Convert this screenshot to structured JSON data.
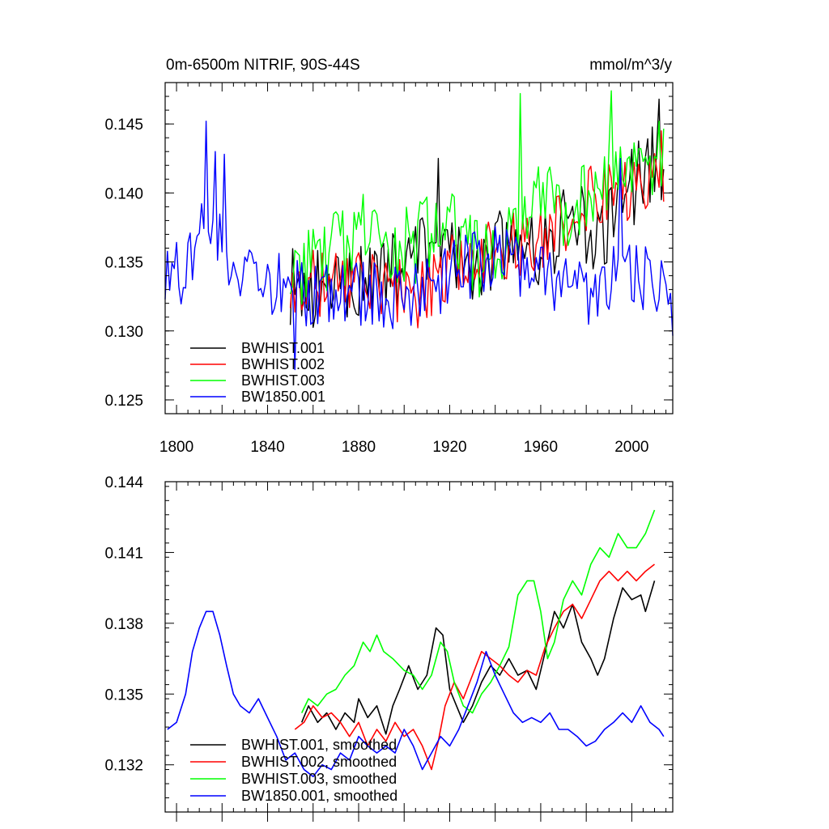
{
  "figure": {
    "colors": {
      "BWHIST.001": "#000000",
      "BWHIST.002": "#ff0000",
      "BWHIST.003": "#00ff00",
      "BW1850.001": "#0000ff"
    }
  },
  "chart_data": [
    {
      "type": "line",
      "title_left": "0m-6500m NITRIF, 90S-44S",
      "title_right": "mmol/m^3/y",
      "xlim": [
        1795,
        2018
      ],
      "ylim": [
        0.124,
        0.148
      ],
      "yticks": [
        "0.125",
        "0.130",
        "0.135",
        "0.140",
        "0.145"
      ],
      "xticks": [
        "1800",
        "1840",
        "1880",
        "1920",
        "1960",
        "2000"
      ],
      "legend": {
        "position": "bottom-left",
        "entries": [
          "BWHIST.001",
          "BWHIST.002",
          "BWHIST.003",
          "BW1850.001"
        ]
      },
      "series": [
        {
          "name": "BWHIST.001",
          "color": "#000000",
          "x_start": 1850,
          "x_end": 2014,
          "anchors": [
            [
              1850,
              0.133
            ],
            [
              1880,
              0.1335
            ],
            [
              1900,
              0.1345
            ],
            [
              1915,
              0.137
            ],
            [
              1925,
              0.1345
            ],
            [
              1945,
              0.1365
            ],
            [
              1960,
              0.136
            ],
            [
              1975,
              0.1385
            ],
            [
              1985,
              0.137
            ],
            [
              2000,
              0.1405
            ],
            [
              2014,
              0.1425
            ]
          ],
          "noise": 0.003,
          "spikes": [
            [
              2012,
              0.1468
            ],
            [
              1915,
              0.1425
            ]
          ]
        },
        {
          "name": "BWHIST.002",
          "color": "#ff0000",
          "x_start": 1850,
          "x_end": 2014,
          "anchors": [
            [
              1850,
              0.1335
            ],
            [
              1880,
              0.1335
            ],
            [
              1905,
              0.1325
            ],
            [
              1925,
              0.1355
            ],
            [
              1945,
              0.136
            ],
            [
              1965,
              0.137
            ],
            [
              1985,
              0.14
            ],
            [
              2000,
              0.14
            ],
            [
              2014,
              0.1415
            ]
          ],
          "noise": 0.0025,
          "spikes": [
            [
              2013,
              0.1445
            ]
          ]
        },
        {
          "name": "BWHIST.003",
          "color": "#00ff00",
          "x_start": 1850,
          "x_end": 2014,
          "anchors": [
            [
              1850,
              0.1345
            ],
            [
              1865,
              0.135
            ],
            [
              1880,
              0.137
            ],
            [
              1900,
              0.136
            ],
            [
              1920,
              0.1375
            ],
            [
              1935,
              0.135
            ],
            [
              1955,
              0.139
            ],
            [
              1975,
              0.139
            ],
            [
              1995,
              0.141
            ],
            [
              2014,
              0.143
            ]
          ],
          "noise": 0.003,
          "spikes": [
            [
              1951,
              0.1472
            ],
            [
              1991,
              0.1474
            ],
            [
              2012,
              0.1452
            ]
          ]
        },
        {
          "name": "BW1850.001",
          "color": "#0000ff",
          "x_start": 1795,
          "x_end": 2018,
          "anchors": [
            [
              1795,
              0.1335
            ],
            [
              1805,
              0.1345
            ],
            [
              1815,
              0.1385
            ],
            [
              1825,
              0.1345
            ],
            [
              1840,
              0.1335
            ],
            [
              1860,
              0.1325
            ],
            [
              1880,
              0.1325
            ],
            [
              1900,
              0.1325
            ],
            [
              1920,
              0.134
            ],
            [
              1940,
              0.1355
            ],
            [
              1960,
              0.1345
            ],
            [
              1975,
              0.1325
            ],
            [
              1990,
              0.1335
            ],
            [
              2000,
              0.1345
            ],
            [
              2010,
              0.1335
            ],
            [
              2018,
              0.132
            ]
          ],
          "noise": 0.0025,
          "spikes": [
            [
              1813,
              0.1452
            ],
            [
              1817,
              0.143
            ],
            [
              1821,
              0.1428
            ],
            [
              1852,
              0.1272
            ],
            [
              1995,
              0.1425
            ]
          ]
        }
      ]
    },
    {
      "type": "line",
      "xlim": [
        1795,
        2018
      ],
      "ylim": [
        0.13,
        0.144
      ],
      "yticks": [
        "0.132",
        "0.135",
        "0.138",
        "0.141",
        "0.144"
      ],
      "legend": {
        "position": "bottom-left",
        "entries": [
          "BWHIST.001, smoothed",
          "BWHIST.002, smoothed",
          "BWHIST.003, smoothed",
          "BW1850.001, smoothed"
        ]
      },
      "series": [
        {
          "name": "BWHIST.001, smoothed",
          "color": "#000000",
          "points": [
            [
              1855,
              0.1338
            ],
            [
              1858,
              0.1345
            ],
            [
              1862,
              0.1338
            ],
            [
              1866,
              0.1342
            ],
            [
              1870,
              0.1335
            ],
            [
              1874,
              0.1342
            ],
            [
              1878,
              0.1338
            ],
            [
              1880,
              0.1348
            ],
            [
              1884,
              0.134
            ],
            [
              1888,
              0.1345
            ],
            [
              1892,
              0.1333
            ],
            [
              1895,
              0.1345
            ],
            [
              1898,
              0.1352
            ],
            [
              1902,
              0.1362
            ],
            [
              1906,
              0.1352
            ],
            [
              1910,
              0.1358
            ],
            [
              1914,
              0.1378
            ],
            [
              1917,
              0.1375
            ],
            [
              1920,
              0.1352
            ],
            [
              1923,
              0.1345
            ],
            [
              1926,
              0.1338
            ],
            [
              1930,
              0.1345
            ],
            [
              1934,
              0.1355
            ],
            [
              1938,
              0.1362
            ],
            [
              1942,
              0.1358
            ],
            [
              1946,
              0.1365
            ],
            [
              1950,
              0.1358
            ],
            [
              1954,
              0.136
            ],
            [
              1958,
              0.1352
            ],
            [
              1962,
              0.1368
            ],
            [
              1966,
              0.1385
            ],
            [
              1970,
              0.1378
            ],
            [
              1974,
              0.1388
            ],
            [
              1978,
              0.1372
            ],
            [
              1982,
              0.1365
            ],
            [
              1985,
              0.1358
            ],
            [
              1988,
              0.1365
            ],
            [
              1992,
              0.1382
            ],
            [
              1996,
              0.1395
            ],
            [
              2000,
              0.139
            ],
            [
              2004,
              0.1392
            ],
            [
              2006,
              0.1385
            ],
            [
              2010,
              0.1398
            ]
          ]
        },
        {
          "name": "BWHIST.002, smoothed",
          "color": "#ff0000",
          "points": [
            [
              1852,
              0.1335
            ],
            [
              1856,
              0.1338
            ],
            [
              1860,
              0.1345
            ],
            [
              1864,
              0.134
            ],
            [
              1868,
              0.1342
            ],
            [
              1872,
              0.1338
            ],
            [
              1876,
              0.1332
            ],
            [
              1880,
              0.1338
            ],
            [
              1884,
              0.1328
            ],
            [
              1888,
              0.1335
            ],
            [
              1892,
              0.133
            ],
            [
              1896,
              0.1338
            ],
            [
              1900,
              0.1332
            ],
            [
              1904,
              0.1335
            ],
            [
              1908,
              0.1328
            ],
            [
              1912,
              0.1318
            ],
            [
              1915,
              0.133
            ],
            [
              1918,
              0.1345
            ],
            [
              1922,
              0.1355
            ],
            [
              1926,
              0.1348
            ],
            [
              1930,
              0.1358
            ],
            [
              1934,
              0.1368
            ],
            [
              1938,
              0.1365
            ],
            [
              1942,
              0.1362
            ],
            [
              1946,
              0.1358
            ],
            [
              1950,
              0.1355
            ],
            [
              1954,
              0.136
            ],
            [
              1958,
              0.1358
            ],
            [
              1962,
              0.137
            ],
            [
              1966,
              0.1378
            ],
            [
              1970,
              0.1385
            ],
            [
              1974,
              0.1388
            ],
            [
              1978,
              0.1382
            ],
            [
              1982,
              0.139
            ],
            [
              1986,
              0.1398
            ],
            [
              1990,
              0.1402
            ],
            [
              1994,
              0.1398
            ],
            [
              1998,
              0.1402
            ],
            [
              2002,
              0.1398
            ],
            [
              2006,
              0.1402
            ],
            [
              2010,
              0.1405
            ]
          ]
        },
        {
          "name": "BWHIST.003, smoothed",
          "color": "#00ff00",
          "points": [
            [
              1855,
              0.1342
            ],
            [
              1858,
              0.1348
            ],
            [
              1862,
              0.1345
            ],
            [
              1866,
              0.135
            ],
            [
              1870,
              0.1352
            ],
            [
              1874,
              0.1358
            ],
            [
              1878,
              0.1362
            ],
            [
              1882,
              0.1372
            ],
            [
              1885,
              0.1368
            ],
            [
              1888,
              0.1375
            ],
            [
              1891,
              0.1368
            ],
            [
              1895,
              0.1365
            ],
            [
              1900,
              0.136
            ],
            [
              1904,
              0.1358
            ],
            [
              1908,
              0.1352
            ],
            [
              1912,
              0.1358
            ],
            [
              1916,
              0.1372
            ],
            [
              1919,
              0.1368
            ],
            [
              1922,
              0.1355
            ],
            [
              1926,
              0.1345
            ],
            [
              1930,
              0.1342
            ],
            [
              1934,
              0.135
            ],
            [
              1938,
              0.1355
            ],
            [
              1942,
              0.1362
            ],
            [
              1946,
              0.137
            ],
            [
              1950,
              0.1392
            ],
            [
              1954,
              0.1398
            ],
            [
              1957,
              0.1398
            ],
            [
              1960,
              0.1385
            ],
            [
              1963,
              0.1365
            ],
            [
              1966,
              0.1372
            ],
            [
              1970,
              0.139
            ],
            [
              1974,
              0.1398
            ],
            [
              1978,
              0.1392
            ],
            [
              1982,
              0.1405
            ],
            [
              1986,
              0.1412
            ],
            [
              1990,
              0.1408
            ],
            [
              1994,
              0.1418
            ],
            [
              1998,
              0.1412
            ],
            [
              2002,
              0.1412
            ],
            [
              2006,
              0.1418
            ],
            [
              2010,
              0.1428
            ]
          ]
        },
        {
          "name": "BW1850.001, smoothed",
          "color": "#0000ff",
          "points": [
            [
              1796,
              0.1335
            ],
            [
              1800,
              0.1338
            ],
            [
              1804,
              0.135
            ],
            [
              1807,
              0.1368
            ],
            [
              1810,
              0.1378
            ],
            [
              1813,
              0.1385
            ],
            [
              1816,
              0.1385
            ],
            [
              1819,
              0.1375
            ],
            [
              1822,
              0.1362
            ],
            [
              1825,
              0.135
            ],
            [
              1828,
              0.1345
            ],
            [
              1832,
              0.1342
            ],
            [
              1836,
              0.1348
            ],
            [
              1840,
              0.134
            ],
            [
              1844,
              0.1332
            ],
            [
              1848,
              0.1322
            ],
            [
              1852,
              0.1325
            ],
            [
              1856,
              0.1318
            ],
            [
              1860,
              0.1315
            ],
            [
              1864,
              0.132
            ],
            [
              1868,
              0.1318
            ],
            [
              1872,
              0.1325
            ],
            [
              1876,
              0.1322
            ],
            [
              1880,
              0.1332
            ],
            [
              1884,
              0.1328
            ],
            [
              1888,
              0.1325
            ],
            [
              1892,
              0.1328
            ],
            [
              1896,
              0.1325
            ],
            [
              1900,
              0.1335
            ],
            [
              1904,
              0.1328
            ],
            [
              1908,
              0.1318
            ],
            [
              1912,
              0.1325
            ],
            [
              1916,
              0.1332
            ],
            [
              1920,
              0.1328
            ],
            [
              1924,
              0.1335
            ],
            [
              1928,
              0.1345
            ],
            [
              1932,
              0.1355
            ],
            [
              1936,
              0.1368
            ],
            [
              1940,
              0.1358
            ],
            [
              1944,
              0.135
            ],
            [
              1948,
              0.1342
            ],
            [
              1952,
              0.1338
            ],
            [
              1956,
              0.134
            ],
            [
              1960,
              0.1338
            ],
            [
              1964,
              0.1342
            ],
            [
              1968,
              0.1335
            ],
            [
              1972,
              0.1335
            ],
            [
              1976,
              0.1332
            ],
            [
              1980,
              0.1328
            ],
            [
              1984,
              0.133
            ],
            [
              1988,
              0.1335
            ],
            [
              1992,
              0.1338
            ],
            [
              1996,
              0.1342
            ],
            [
              2000,
              0.1338
            ],
            [
              2004,
              0.1345
            ],
            [
              2008,
              0.1338
            ],
            [
              2012,
              0.1335
            ],
            [
              2014,
              0.1332
            ]
          ]
        }
      ]
    }
  ]
}
